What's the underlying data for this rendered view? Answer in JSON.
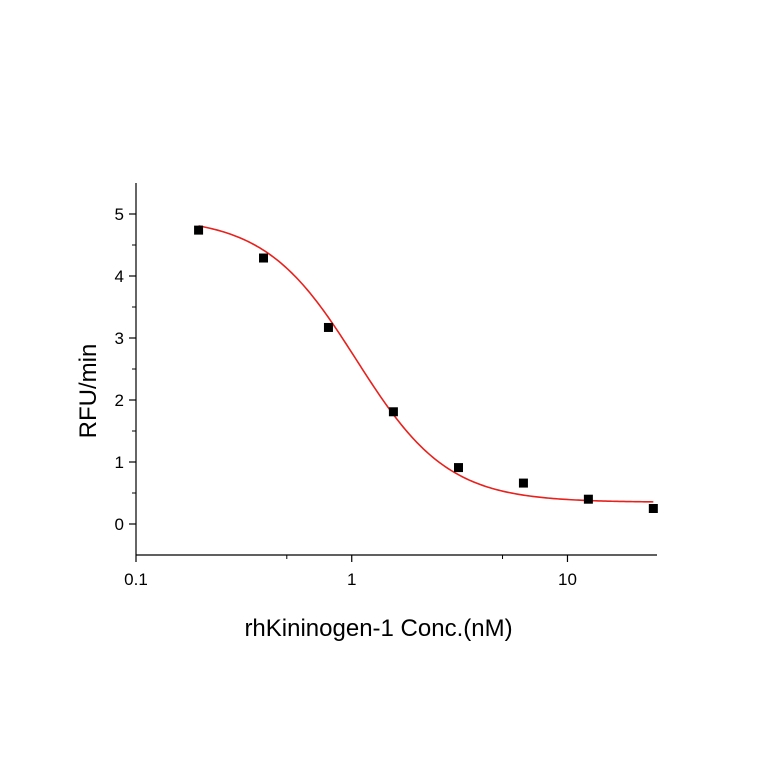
{
  "chart_data": {
    "type": "scatter",
    "xlabel": "rhKininogen-1 Conc.(nM)",
    "ylabel": "RFU/min",
    "xscale": "log",
    "xlim": [
      0.1,
      26
    ],
    "ylim": [
      -0.5,
      5.5
    ],
    "x_ticks": [
      0.1,
      1,
      10
    ],
    "x_tick_labels": [
      "0.1",
      "1",
      "10"
    ],
    "y_ticks": [
      0,
      1,
      2,
      3,
      4,
      5
    ],
    "y_tick_labels": [
      "0",
      "1",
      "2",
      "3",
      "4",
      "5"
    ],
    "grid": false,
    "series": [
      {
        "kind": "points",
        "marker": "square",
        "color": "#000000",
        "x": [
          0.195,
          0.39,
          0.78,
          1.56,
          3.125,
          6.25,
          12.5,
          25
        ],
        "y": [
          4.74,
          4.29,
          3.17,
          1.81,
          0.91,
          0.66,
          0.4,
          0.25
        ]
      },
      {
        "kind": "fit-curve",
        "color": "#e8211d",
        "model": "4PL",
        "params": {
          "top": 4.95,
          "bottom": 0.35,
          "ec50": 1.05,
          "hill": 2.05
        },
        "x_range": [
          0.195,
          25
        ]
      }
    ]
  }
}
